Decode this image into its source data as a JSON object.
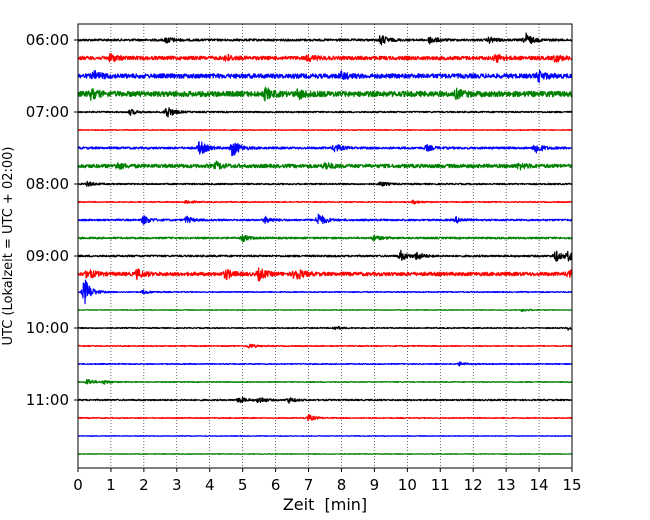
{
  "chart_data": {
    "type": "line",
    "xlabel": "Zeit  [min]",
    "ylabel": "UTC (Lokalzeit = UTC + 02:00)",
    "xlim": [
      0,
      15
    ],
    "x_ticks": [
      0,
      1,
      2,
      3,
      4,
      5,
      6,
      7,
      8,
      9,
      10,
      11,
      12,
      13,
      14,
      15
    ],
    "x_tick_labels": [
      "0",
      "1",
      "2",
      "3",
      "4",
      "5",
      "6",
      "7",
      "8",
      "9",
      "10",
      "11",
      "12",
      "13",
      "14",
      "15"
    ],
    "y_tick_labels": [
      "06:00",
      "07:00",
      "08:00",
      "09:00",
      "10:00",
      "11:00"
    ],
    "y_tick_traces": [
      0,
      4,
      8,
      12,
      16,
      20
    ],
    "grid": "vertical-dotted",
    "colors": [
      "#000000",
      "#ff0000",
      "#0000ff",
      "#008000"
    ],
    "traces": [
      {
        "start": "06:00",
        "color": "#000000",
        "noise": 0.12,
        "events": [
          {
            "x": 2.7,
            "amp": 0.35
          },
          {
            "x": 9.2,
            "amp": 0.55
          },
          {
            "x": 10.7,
            "amp": 0.4
          },
          {
            "x": 13.6,
            "amp": 0.7
          },
          {
            "x": 12.5,
            "amp": 0.3
          }
        ]
      },
      {
        "start": "06:15",
        "color": "#ff0000",
        "noise": 0.2,
        "events": [
          {
            "x": 1.0,
            "amp": 0.4
          },
          {
            "x": 4.5,
            "amp": 0.35
          },
          {
            "x": 7.0,
            "amp": 0.3
          },
          {
            "x": 12.7,
            "amp": 0.4
          },
          {
            "x": 14.5,
            "amp": 0.35
          }
        ]
      },
      {
        "start": "06:30",
        "color": "#0000ff",
        "noise": 0.25,
        "events": [
          {
            "x": 0.5,
            "amp": 0.4
          },
          {
            "x": 8.0,
            "amp": 0.35
          },
          {
            "x": 14.0,
            "amp": 0.5
          }
        ]
      },
      {
        "start": "06:45",
        "color": "#008000",
        "noise": 0.3,
        "events": [
          {
            "x": 0.4,
            "amp": 0.45
          },
          {
            "x": 5.7,
            "amp": 0.55
          },
          {
            "x": 6.7,
            "amp": 0.45
          },
          {
            "x": 11.5,
            "amp": 0.4
          }
        ]
      },
      {
        "start": "07:00",
        "color": "#000000",
        "noise": 0.08,
        "events": [
          {
            "x": 1.6,
            "amp": 0.3
          },
          {
            "x": 2.7,
            "amp": 0.7
          }
        ]
      },
      {
        "start": "07:15",
        "color": "#ff0000",
        "noise": 0.05,
        "events": []
      },
      {
        "start": "07:30",
        "color": "#0000ff",
        "noise": 0.12,
        "events": [
          {
            "x": 3.7,
            "amp": 0.8
          },
          {
            "x": 4.7,
            "amp": 0.95
          },
          {
            "x": 7.8,
            "amp": 0.45
          },
          {
            "x": 10.6,
            "amp": 0.3
          },
          {
            "x": 13.9,
            "amp": 0.6
          }
        ]
      },
      {
        "start": "07:45",
        "color": "#008000",
        "noise": 0.2,
        "events": [
          {
            "x": 1.2,
            "amp": 0.3
          },
          {
            "x": 4.2,
            "amp": 0.35
          },
          {
            "x": 7.5,
            "amp": 0.35
          },
          {
            "x": 13.4,
            "amp": 0.3
          }
        ]
      },
      {
        "start": "08:00",
        "color": "#000000",
        "noise": 0.08,
        "events": [
          {
            "x": 0.3,
            "amp": 0.25
          },
          {
            "x": 9.2,
            "amp": 0.25
          }
        ]
      },
      {
        "start": "08:15",
        "color": "#ff0000",
        "noise": 0.06,
        "events": [
          {
            "x": 3.3,
            "amp": 0.2
          },
          {
            "x": 10.2,
            "amp": 0.2
          }
        ]
      },
      {
        "start": "08:30",
        "color": "#0000ff",
        "noise": 0.1,
        "events": [
          {
            "x": 2.0,
            "amp": 0.45
          },
          {
            "x": 3.3,
            "amp": 0.35
          },
          {
            "x": 5.7,
            "amp": 0.35
          },
          {
            "x": 7.3,
            "amp": 0.75
          },
          {
            "x": 11.5,
            "amp": 0.3
          }
        ]
      },
      {
        "start": "08:45",
        "color": "#008000",
        "noise": 0.1,
        "events": [
          {
            "x": 5.0,
            "amp": 0.35
          },
          {
            "x": 9.0,
            "amp": 0.3
          }
        ]
      },
      {
        "start": "09:00",
        "color": "#000000",
        "noise": 0.1,
        "events": [
          {
            "x": 9.8,
            "amp": 0.55
          },
          {
            "x": 10.3,
            "amp": 0.4
          },
          {
            "x": 14.5,
            "amp": 0.6
          },
          {
            "x": 14.9,
            "amp": 0.5
          }
        ]
      },
      {
        "start": "09:15",
        "color": "#ff0000",
        "noise": 0.2,
        "events": [
          {
            "x": 0.3,
            "amp": 0.5
          },
          {
            "x": 1.8,
            "amp": 0.45
          },
          {
            "x": 4.5,
            "amp": 0.5
          },
          {
            "x": 5.5,
            "amp": 0.6
          },
          {
            "x": 6.6,
            "amp": 0.75
          },
          {
            "x": 14.9,
            "amp": 0.4
          }
        ]
      },
      {
        "start": "09:30",
        "color": "#0000ff",
        "noise": 0.06,
        "events": [
          {
            "x": 0.2,
            "amp": 1.5
          },
          {
            "x": 2.0,
            "amp": 0.2
          }
        ]
      },
      {
        "start": "09:45",
        "color": "#008000",
        "noise": 0.04,
        "events": [
          {
            "x": 13.5,
            "amp": 0.15
          }
        ]
      },
      {
        "start": "10:00",
        "color": "#000000",
        "noise": 0.06,
        "events": [
          {
            "x": 7.8,
            "amp": 0.2
          },
          {
            "x": 14.9,
            "amp": 0.2
          }
        ]
      },
      {
        "start": "10:15",
        "color": "#ff0000",
        "noise": 0.06,
        "events": [
          {
            "x": 5.2,
            "amp": 0.25
          }
        ]
      },
      {
        "start": "10:30",
        "color": "#0000ff",
        "noise": 0.06,
        "events": [
          {
            "x": 11.6,
            "amp": 0.2
          }
        ]
      },
      {
        "start": "10:45",
        "color": "#008000",
        "noise": 0.05,
        "events": [
          {
            "x": 0.3,
            "amp": 0.35
          },
          {
            "x": 0.8,
            "amp": 0.2
          }
        ]
      },
      {
        "start": "11:00",
        "color": "#000000",
        "noise": 0.08,
        "events": [
          {
            "x": 4.9,
            "amp": 0.35
          },
          {
            "x": 5.5,
            "amp": 0.35
          },
          {
            "x": 6.4,
            "amp": 0.3
          }
        ]
      },
      {
        "start": "11:15",
        "color": "#ff0000",
        "noise": 0.06,
        "events": [
          {
            "x": 7.0,
            "amp": 0.35
          }
        ]
      },
      {
        "start": "11:30",
        "color": "#0000ff",
        "noise": 0.04,
        "events": []
      },
      {
        "start": "11:45",
        "color": "#008000",
        "noise": 0.04,
        "events": []
      }
    ]
  }
}
